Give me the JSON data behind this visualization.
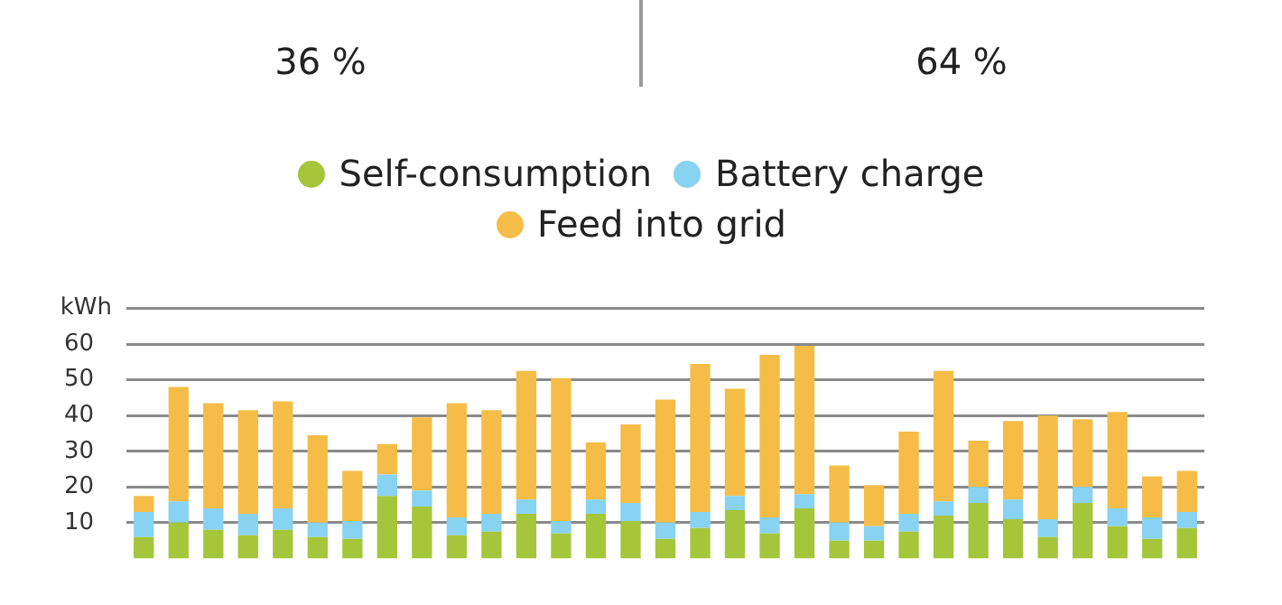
{
  "chart_data": {
    "type": "bar",
    "stacked": true,
    "ylabel": "kWh",
    "annotations": [
      "36 %",
      "64 %"
    ],
    "categories": [
      null,
      null,
      null,
      null,
      null,
      null,
      null,
      null,
      null,
      null,
      null,
      null,
      null,
      null,
      null,
      null,
      null,
      null,
      null,
      null,
      null,
      null,
      null,
      null,
      null,
      null,
      null,
      null,
      null,
      null,
      null
    ],
    "series": [
      {
        "name": "Self-consumption",
        "color": "#a5c63b",
        "values": [
          6,
          10,
          8,
          6.5,
          8,
          6,
          5.5,
          17.5,
          14.5,
          6.5,
          7.5,
          12.5,
          7,
          12.5,
          10.5,
          5.5,
          8.5,
          13.5,
          7,
          14,
          5,
          5,
          7.5,
          12,
          15.5,
          11,
          6,
          15.5,
          9,
          5.5,
          8.5
        ]
      },
      {
        "name": "Battery charge",
        "color": "#88d2f2",
        "values": [
          7,
          6,
          6,
          6,
          6,
          4,
          5,
          6,
          4.5,
          5,
          5,
          4,
          3.5,
          4,
          5,
          4.5,
          4.5,
          4,
          4.5,
          4,
          5,
          4,
          5,
          4,
          4.5,
          5.5,
          5,
          4.5,
          5,
          6,
          4.5
        ]
      },
      {
        "name": "Feed into grid",
        "color": "#f5bd48",
        "values": [
          4.5,
          32,
          29.5,
          29,
          30,
          24.5,
          14,
          8.5,
          20.5,
          32,
          29,
          36,
          40,
          16,
          22,
          34.5,
          41.5,
          30,
          45.5,
          41.5,
          16,
          11.5,
          23,
          36.5,
          13,
          22,
          29,
          19,
          27,
          11.5,
          11.5
        ]
      }
    ],
    "ylim": [
      0,
      70
    ],
    "yticks": [
      10,
      20,
      30,
      40,
      50,
      60,
      {
        "value": 70,
        "label": null
      }
    ],
    "grid": "y",
    "legend": "top",
    "tick_labels": "y"
  }
}
